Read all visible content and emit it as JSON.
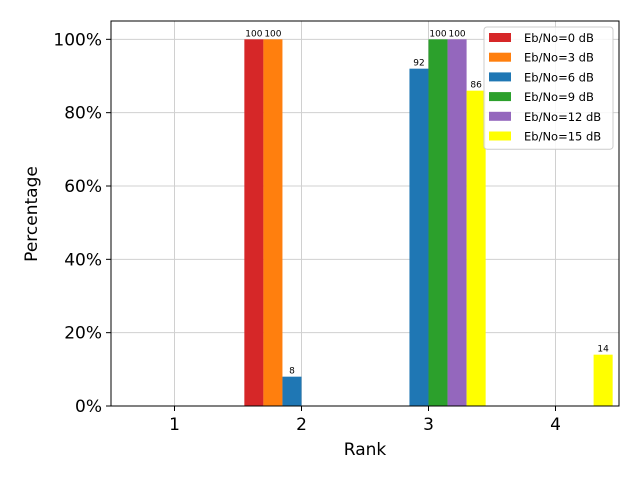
{
  "chart_data": {
    "type": "bar",
    "categories": [
      "1",
      "2",
      "3",
      "4"
    ],
    "xlabel": "Rank",
    "ylabel": "Percentage",
    "ylim": [
      0,
      105
    ],
    "yticks": [
      0,
      20,
      40,
      60,
      80,
      100
    ],
    "ytick_labels": [
      "0%",
      "20%",
      "40%",
      "60%",
      "80%",
      "100%"
    ],
    "grid": true,
    "legend_position": "top-right",
    "series": [
      {
        "name": "Eb/No=0 dB",
        "color": "#d62728",
        "values": [
          0,
          100,
          0,
          0
        ],
        "labels": [
          "",
          "100",
          "",
          ""
        ]
      },
      {
        "name": "Eb/No=3 dB",
        "color": "#ff7f0e",
        "values": [
          0,
          100,
          0,
          0
        ],
        "labels": [
          "",
          "100",
          "",
          ""
        ]
      },
      {
        "name": "Eb/No=6 dB",
        "color": "#1f77b4",
        "values": [
          0,
          8,
          92,
          0
        ],
        "labels": [
          "",
          "8",
          "92",
          ""
        ]
      },
      {
        "name": "Eb/No=9 dB",
        "color": "#2ca02c",
        "values": [
          0,
          0,
          100,
          0
        ],
        "labels": [
          "",
          "",
          "100",
          ""
        ]
      },
      {
        "name": "Eb/No=12 dB",
        "color": "#9467bd",
        "values": [
          0,
          0,
          100,
          0
        ],
        "labels": [
          "",
          "",
          "100",
          ""
        ]
      },
      {
        "name": "Eb/No=15 dB",
        "color": "#ffff00",
        "values": [
          0,
          0,
          86,
          14
        ],
        "labels": [
          "",
          "",
          "86",
          "14"
        ]
      }
    ]
  }
}
